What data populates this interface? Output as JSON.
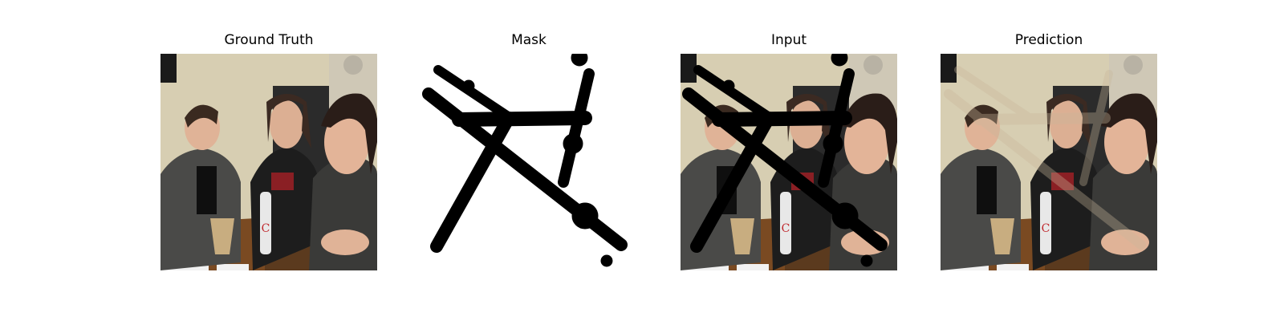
{
  "figure": {
    "panels": [
      {
        "title": "Ground Truth"
      },
      {
        "title": "Mask"
      },
      {
        "title": "Input"
      },
      {
        "title": "Prediction"
      }
    ]
  }
}
